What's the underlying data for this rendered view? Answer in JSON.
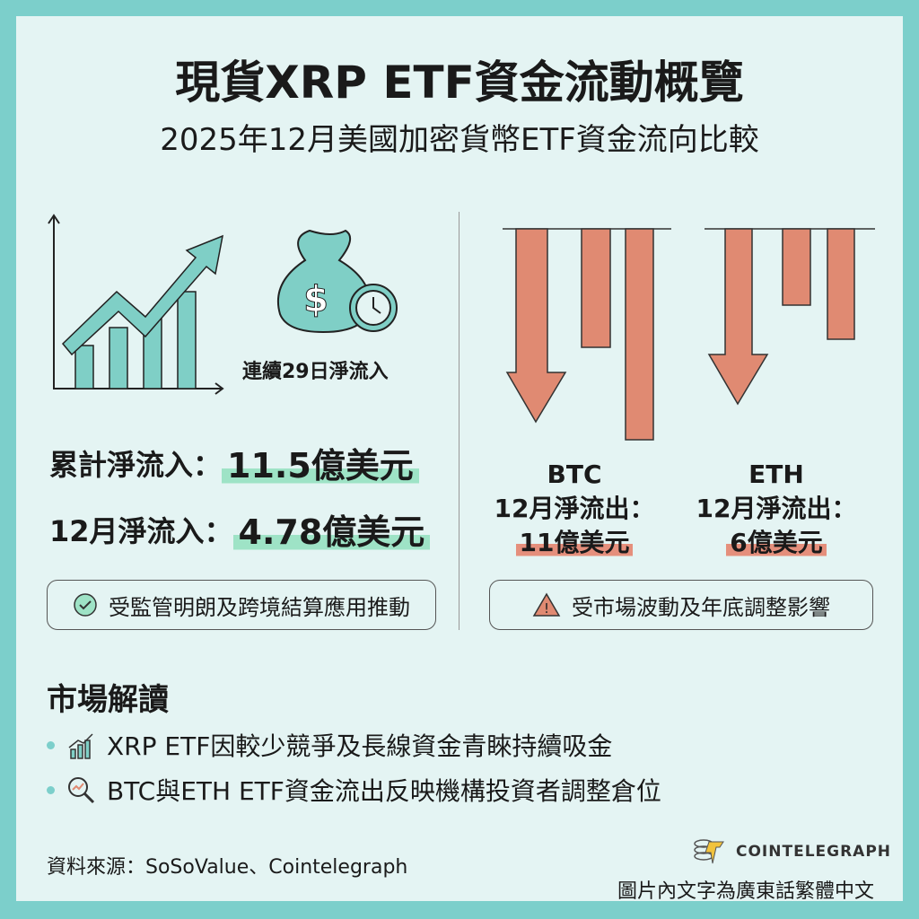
{
  "title": "現貨XRP ETF資金流動概覽",
  "subtitle": "2025年12月美國加密貨幣ETF資金流向比較",
  "xrp": {
    "streak": "連續29日淨流入",
    "cumulative_label": "累計淨流入：",
    "cumulative_value": "11.5億美元",
    "dec_label": "12月淨流入：",
    "dec_value": "4.78億美元",
    "note": "受監管明朗及跨境結算應用推動"
  },
  "outflows": {
    "btc": {
      "name": "BTC",
      "label": "12月淨流出：",
      "value": "11億美元"
    },
    "eth": {
      "name": "ETH",
      "label": "12月淨流出：",
      "value": "6億美元"
    },
    "note": "受市場波動及年底調整影響"
  },
  "market": {
    "heading": "市場解讀",
    "items": [
      "XRP ETF因較少競爭及長線資金青睞持續吸金",
      "BTC與ETH ETF資金流出反映機構投資者調整倉位"
    ]
  },
  "footer": {
    "source": "資料來源：SoSoValue、Cointelegraph",
    "brand": "COINTELEGRAPH",
    "note": "圖片內文字為廣東話繁體中文"
  },
  "colors": {
    "teal": "#7ccfcb",
    "green": "#9ee3c6",
    "red": "#e08a72"
  }
}
